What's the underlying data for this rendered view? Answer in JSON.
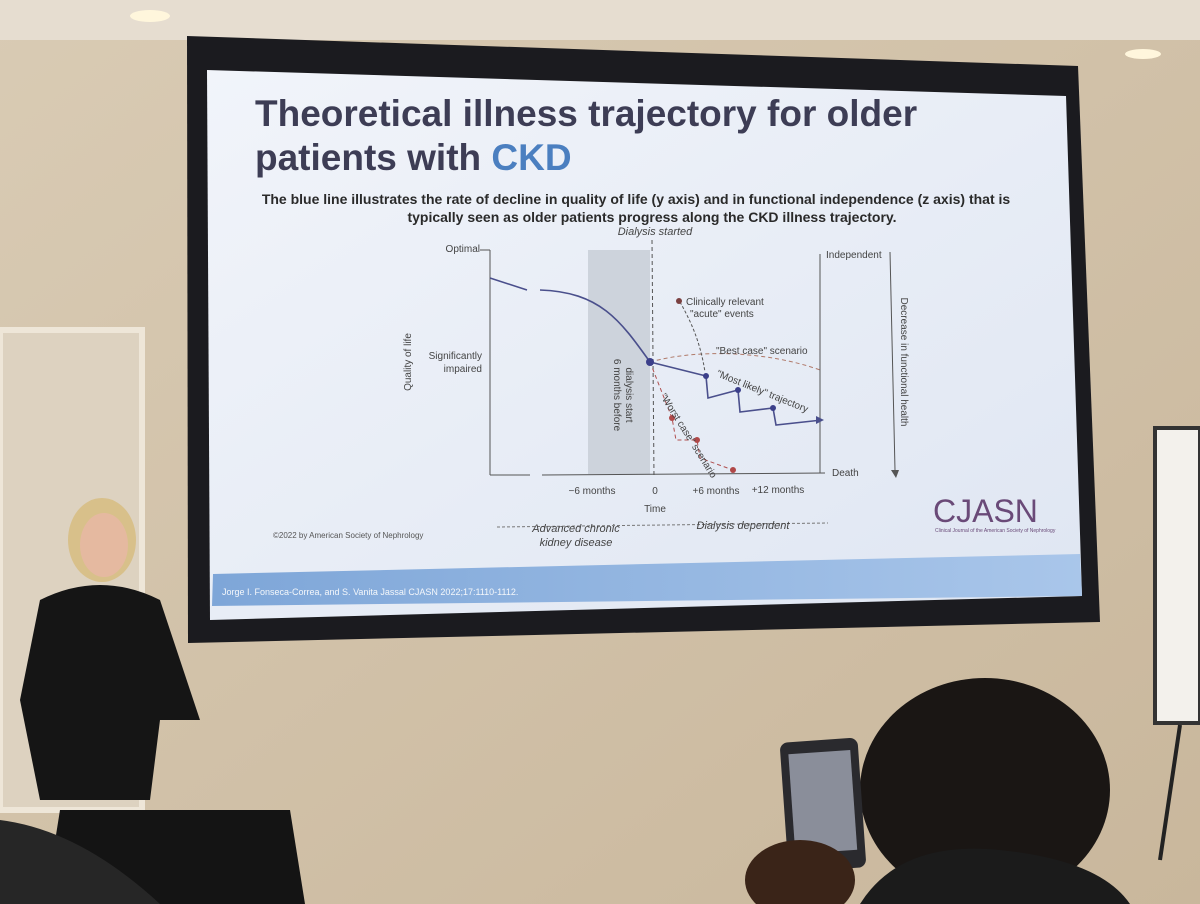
{
  "slide": {
    "title": {
      "lines": [
        "Theoretical illness trajectory for older",
        "patients with"
      ],
      "highlight": "CKD"
    },
    "subtitle": [
      "The blue line illustrates the rate of decline in quality of life (y axis) and in functional independence (z axis) that is",
      "typically seen as older patients progress along the CKD illness trajectory."
    ],
    "diagram": {
      "dialysis_started": "Dialysis started",
      "optimal": "Optimal",
      "significantly_impaired": [
        "Significantly",
        "impaired"
      ],
      "y_axis": "Quality of life",
      "independent": "Independent",
      "death": "Death",
      "z_axis": "Decrease in functional health",
      "before_start": [
        "6 months before",
        "dialysis start"
      ],
      "events": [
        "Clinically relevant",
        "\"acute\" events"
      ],
      "best_case": "\"Best case\" scenario",
      "most_likely": "\"Most likely\" trajectory",
      "worst_case": "\"Worst case\" scenario",
      "x_labels": [
        "−6 months",
        "0",
        "+6 months",
        "+12 months"
      ],
      "x_axis": "Time",
      "periods": [
        [
          "Advanced chronic",
          "kidney disease"
        ],
        "Dialysis dependent"
      ]
    },
    "copyright": "©2022 by American Society of Nephrology",
    "logo": {
      "name": "CJASN",
      "subtitle": "Clinical Journal of the American Society of Nephrology"
    },
    "citation": "Jorge I. Fonseca-Correa, and S. Vanita Jassal CJASN 2022;17:1110-1112."
  }
}
